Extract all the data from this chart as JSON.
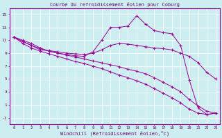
{
  "title": "Courbe du refroidissement éolien pour Coburg",
  "xlabel": "Windchill (Refroidissement éolien,°C)",
  "bg_color": "#cceef0",
  "line_color": "#990099",
  "grid_color": "#ffffff",
  "xlim": [
    -0.5,
    23.5
  ],
  "ylim": [
    -2,
    16
  ],
  "yticks": [
    -1,
    1,
    3,
    5,
    7,
    9,
    11,
    13,
    15
  ],
  "xticks": [
    0,
    1,
    2,
    3,
    4,
    5,
    6,
    7,
    8,
    9,
    10,
    11,
    12,
    13,
    14,
    15,
    16,
    17,
    18,
    19,
    20,
    21,
    22,
    23
  ],
  "line1_x": [
    0,
    1,
    2,
    3,
    4,
    5,
    6,
    7,
    8,
    9,
    10,
    11,
    12,
    13,
    14,
    15,
    16,
    17,
    18,
    19,
    20,
    21,
    22,
    23
  ],
  "line1_y": [
    11.5,
    11.0,
    10.5,
    9.8,
    9.3,
    9.0,
    8.8,
    8.6,
    8.5,
    9.2,
    11.0,
    13.0,
    13.0,
    13.2,
    14.8,
    13.5,
    12.5,
    12.2,
    12.0,
    10.2,
    4.8,
    0.5,
    -0.5,
    -0.3
  ],
  "line2_x": [
    0,
    1,
    2,
    3,
    4,
    5,
    6,
    7,
    8,
    9,
    10,
    11,
    12,
    13,
    14,
    15,
    16,
    17,
    18,
    19,
    20,
    21,
    22,
    23
  ],
  "line2_y": [
    11.5,
    10.8,
    10.2,
    9.5,
    9.4,
    9.2,
    9.0,
    8.9,
    8.8,
    9.0,
    9.5,
    10.2,
    10.5,
    10.4,
    10.2,
    10.0,
    9.8,
    9.7,
    9.5,
    9.0,
    8.5,
    7.5,
    6.0,
    5.0
  ],
  "line3_x": [
    0,
    1,
    2,
    3,
    4,
    5,
    6,
    7,
    8,
    9,
    10,
    11,
    12,
    13,
    14,
    15,
    16,
    17,
    18,
    19,
    20,
    21,
    22,
    23
  ],
  "line3_y": [
    11.5,
    10.8,
    10.2,
    9.7,
    9.3,
    9.0,
    8.7,
    8.4,
    8.1,
    7.8,
    7.5,
    7.2,
    6.9,
    6.5,
    6.2,
    5.8,
    5.2,
    4.5,
    3.8,
    3.0,
    1.8,
    0.8,
    0.0,
    -0.3
  ],
  "line4_x": [
    0,
    1,
    2,
    3,
    4,
    5,
    6,
    7,
    8,
    9,
    10,
    11,
    12,
    13,
    14,
    15,
    16,
    17,
    18,
    19,
    20,
    21,
    22,
    23
  ],
  "line4_y": [
    11.5,
    10.5,
    9.8,
    9.3,
    8.9,
    8.5,
    8.1,
    7.7,
    7.4,
    7.0,
    6.6,
    6.1,
    5.6,
    5.2,
    4.7,
    4.2,
    3.5,
    2.8,
    2.1,
    1.3,
    0.3,
    -0.3,
    -0.5,
    -0.3
  ]
}
